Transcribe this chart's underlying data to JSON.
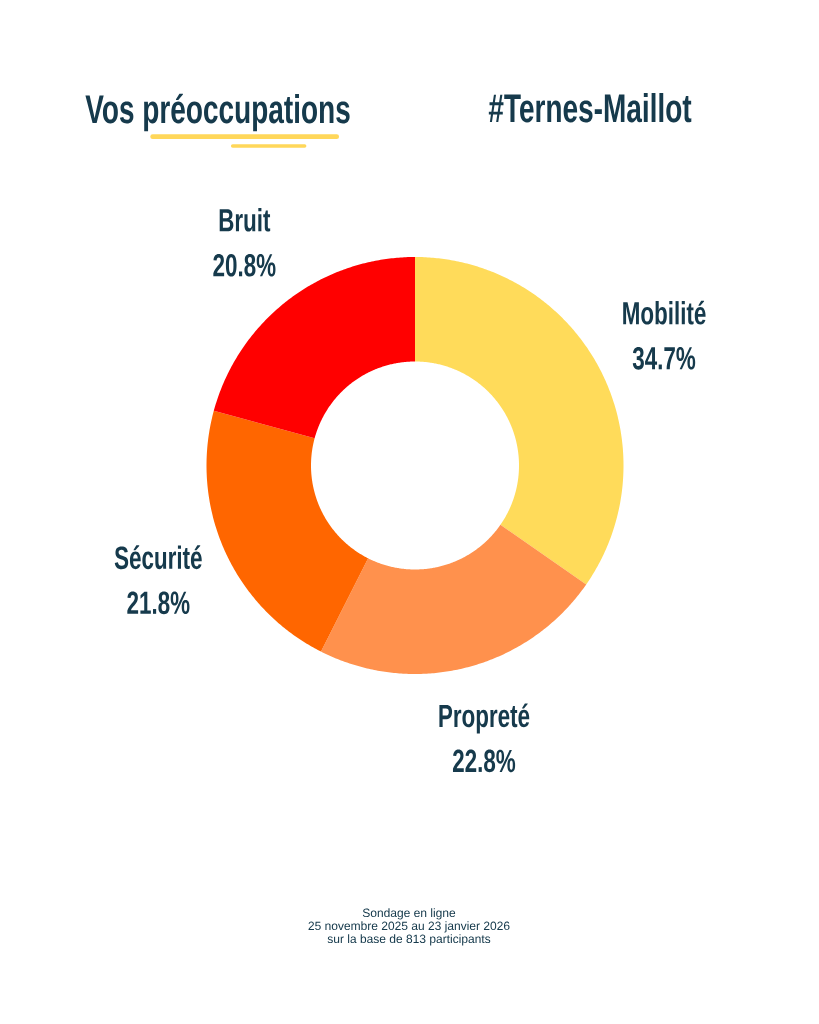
{
  "chart_data": {
    "type": "donut",
    "title": "Vos préoccupations",
    "subtitle": "#Ternes-Maillot",
    "categories": [
      "Mobilité",
      "Propreté",
      "Sécurité",
      "Bruit"
    ],
    "values": [
      34.7,
      22.8,
      21.8,
      20.8
    ],
    "colors": [
      "#ffdb5a",
      "#ff914d",
      "#ff6600",
      "#ff0000"
    ],
    "value_labels": [
      "34.7%",
      "22.8%",
      "21.8%",
      "20.8%"
    ],
    "annotations": [
      "Sondage en ligne",
      "25 novembre 2025 au 23 janvier 2026",
      "sur la base de 813 participants"
    ]
  }
}
